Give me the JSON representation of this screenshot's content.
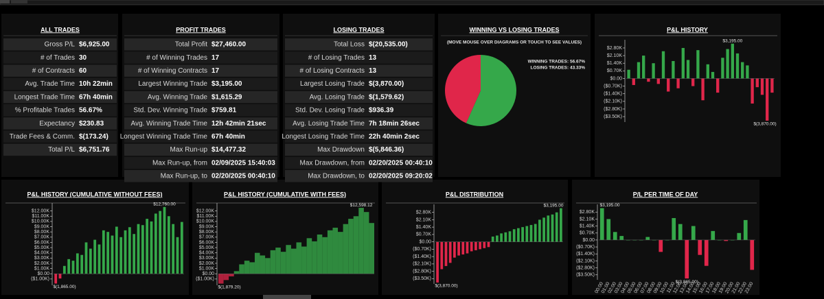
{
  "tables": [
    {
      "title": "ALL TRADES",
      "rows": [
        [
          "Gross P/L",
          "$6,925.00"
        ],
        [
          "# of Trades",
          "30"
        ],
        [
          "# of Contracts",
          "60"
        ],
        [
          "Avg. Trade Time",
          "10h 22min"
        ],
        [
          "Longest Trade Time",
          "67h 40min"
        ],
        [
          "% Profitable Trades",
          "56.67%"
        ],
        [
          "Expectancy",
          "$230.83"
        ],
        [
          "Trade Fees & Comm.",
          "$(173.24)"
        ],
        [
          "Total P/L",
          "$6,751.76"
        ]
      ]
    },
    {
      "title": "PROFIT TRADES",
      "rows": [
        [
          "Total Profit",
          "$27,460.00"
        ],
        [
          "# of Winning Trades",
          "17"
        ],
        [
          "# of Winning Contracts",
          "17"
        ],
        [
          "Largest Winning Trade",
          "$3,195.00"
        ],
        [
          "Avg. Winning Trade",
          "$1,615.29"
        ],
        [
          "Std. Dev. Winning Trade",
          "$759.81"
        ],
        [
          "Avg. Winning Trade Time",
          "12h 42min 21sec"
        ],
        [
          "Longest Winning Trade Time",
          "67h 40min"
        ],
        [
          "Max Run-up",
          "$14,477.32"
        ],
        [
          "Max Run-up, from",
          "02/09/2025 15:40:03"
        ],
        [
          "Max Run-up, to",
          "02/20/2025 00:40:10"
        ]
      ]
    },
    {
      "title": "LOSING TRADES",
      "rows": [
        [
          "Total Loss",
          "$(20,535.00)"
        ],
        [
          "# of Losing Trades",
          "13"
        ],
        [
          "# of Losing Contracts",
          "13"
        ],
        [
          "Largest Losing Trade",
          "$(3,870.00)"
        ],
        [
          "Avg. Losing Trade",
          "$(1,579.62)"
        ],
        [
          "Std. Dev. Losing Trade",
          "$936.39"
        ],
        [
          "Avg. Losing Trade Time",
          "7h 18min 26sec"
        ],
        [
          "Longest Losing Trade Time",
          "22h 40min 2sec"
        ],
        [
          "Max Drawdown",
          "$(5,846.36)"
        ],
        [
          "Max Drawdown, from",
          "02/20/2025 00:40:10"
        ],
        [
          "Max Drawdown, to",
          "02/20/2025 09:20:02"
        ]
      ]
    }
  ],
  "chart_data": [
    {
      "type": "pie",
      "title": "WINNING VS LOSING TRADES",
      "subtitle": "(MOVE MOUSE OVER DIAGRAMS OR TOUCH TO SEE VALUES)",
      "values": [
        56.67,
        43.33
      ],
      "value_labels": [
        "WINNING TRADES: 56.67%",
        "LOSING TRADES: 43.33%"
      ],
      "colors": [
        "#35a84a",
        "#e0264a"
      ]
    },
    {
      "type": "bar",
      "title": "P&L HISTORY",
      "positive_color": "#35a84a",
      "negative_color": "#e0264a",
      "values": [
        800,
        -600,
        1500,
        2100,
        -300,
        1400,
        -500,
        2500,
        -1200,
        1600,
        -900,
        2800,
        1700,
        -700,
        2600,
        -2000,
        1300,
        600,
        -1300,
        1900,
        2700,
        3195,
        2300,
        1500,
        1200,
        -2300,
        -800,
        -1500,
        -3870,
        -1300
      ],
      "ylim": [
        -4000,
        3300
      ],
      "yticks": [
        {
          "value": 2800,
          "label": "$2.80K"
        },
        {
          "value": 2100,
          "label": "$2.10K"
        },
        {
          "value": 1400,
          "label": "$1.40K"
        },
        {
          "value": 700,
          "label": "$0.70K"
        },
        {
          "value": 0,
          "label": "$0.00"
        },
        {
          "value": -700,
          "label": "($0.70K)"
        },
        {
          "value": -1400,
          "label": "($1.40K)"
        },
        {
          "value": -2100,
          "label": "($2.10K)"
        },
        {
          "value": -2800,
          "label": "($2.80K)"
        },
        {
          "value": -3500,
          "label": "($3.50K)"
        }
      ],
      "annotations": [
        {
          "label": "$3,195.00",
          "value": 3195
        },
        {
          "label": "$(3,870.00)",
          "value": -3870
        }
      ]
    },
    {
      "type": "bar",
      "title": "P&L HISTORY (CUMULATIVE WITHOUT FEES)",
      "positive_color": "#35a84a",
      "negative_color": "#e0264a",
      "values": [
        -1865,
        -900,
        1500,
        2800,
        2500,
        3900,
        3600,
        6000,
        4800,
        6500,
        5600,
        8300,
        8000,
        7300,
        9000,
        7000,
        8300,
        8900,
        7600,
        9500,
        9300,
        10500,
        10000,
        11500,
        12000,
        12760,
        11000,
        9500,
        7000,
        9900
      ],
      "ylim": [
        -2200,
        13000
      ],
      "yticks": [
        {
          "value": 12000,
          "label": "$12.00K"
        },
        {
          "value": 11000,
          "label": "$11.00K"
        },
        {
          "value": 10000,
          "label": "$10.00K"
        },
        {
          "value": 9000,
          "label": "$9.00K"
        },
        {
          "value": 8000,
          "label": "$8.00K"
        },
        {
          "value": 7000,
          "label": "$7.00K"
        },
        {
          "value": 6000,
          "label": "$6.00K"
        },
        {
          "value": 5000,
          "label": "$5.00K"
        },
        {
          "value": 4000,
          "label": "$4.00K"
        },
        {
          "value": 3000,
          "label": "$3.00K"
        },
        {
          "value": 2000,
          "label": "$2.00K"
        },
        {
          "value": 1000,
          "label": "$1.00K"
        },
        {
          "value": 0,
          "label": "$0.00"
        },
        {
          "value": -1000,
          "label": "($1.00K)"
        }
      ],
      "annotations": [
        {
          "label": "$12,760.00",
          "value": 12760
        },
        {
          "label": "$(1,865.00)",
          "value": -1865
        }
      ]
    },
    {
      "type": "area",
      "title": "P&L HISTORY (CUMULATIVE WITH FEES)",
      "positive_color": "#2f8a3e",
      "negative_color": "#b0203c",
      "values": [
        -1879.2,
        -1200,
        -500,
        500,
        1800,
        2500,
        2200,
        4000,
        3500,
        3000,
        4500,
        5000,
        4200,
        5500,
        4800,
        6000,
        5200,
        6800,
        6200,
        7500,
        7000,
        8300,
        8800,
        8000,
        9500,
        10500,
        11000,
        12598.12,
        11800,
        9700
      ],
      "ylim": [
        -2200,
        13000
      ],
      "yticks": [
        {
          "value": 12000,
          "label": "$12.00K"
        },
        {
          "value": 11000,
          "label": "$11.00K"
        },
        {
          "value": 10000,
          "label": "$10.00K"
        },
        {
          "value": 9000,
          "label": "$9.00K"
        },
        {
          "value": 8000,
          "label": "$8.00K"
        },
        {
          "value": 7000,
          "label": "$7.00K"
        },
        {
          "value": 6000,
          "label": "$6.00K"
        },
        {
          "value": 5000,
          "label": "$5.00K"
        },
        {
          "value": 4000,
          "label": "$4.00K"
        },
        {
          "value": 3000,
          "label": "$3.00K"
        },
        {
          "value": 2000,
          "label": "$2.00K"
        },
        {
          "value": 1000,
          "label": "$1.00K"
        },
        {
          "value": 0,
          "label": "$0.00"
        },
        {
          "value": -1000,
          "label": "($1.00K)"
        }
      ],
      "annotations": [
        {
          "label": "$12,598.12",
          "value": 12598.12
        },
        {
          "label": "$(1,879.20)",
          "value": -1879.2
        }
      ]
    },
    {
      "type": "bar",
      "title": "P&L DISTRIBUTION",
      "positive_color": "#35a84a",
      "negative_color": "#e0264a",
      "values": [
        -3870,
        -2600,
        -2300,
        -2000,
        -1500,
        -1300,
        -1200,
        -1100,
        -900,
        -800,
        -700,
        -600,
        -500,
        500,
        600,
        800,
        900,
        1000,
        1200,
        1300,
        1400,
        1500,
        1600,
        1700,
        2100,
        2300,
        2500,
        2600,
        2800,
        3195
      ],
      "ylim": [
        -4000,
        3300
      ],
      "yticks": [
        {
          "value": 2800,
          "label": "$2.80K"
        },
        {
          "value": 2100,
          "label": "$2.10K"
        },
        {
          "value": 1400,
          "label": "$1.40K"
        },
        {
          "value": 700,
          "label": "$0.70K"
        },
        {
          "value": 0,
          "label": "$0.00"
        },
        {
          "value": -700,
          "label": "($0.70K)"
        },
        {
          "value": -1400,
          "label": "($1.40K)"
        },
        {
          "value": -2100,
          "label": "($2.10K)"
        },
        {
          "value": -2800,
          "label": "($2.80K)"
        },
        {
          "value": -3500,
          "label": "($3.50K)"
        }
      ],
      "annotations": [
        {
          "label": "$3,195.00",
          "value": 3195
        },
        {
          "label": "$(3,870.00)",
          "value": -3870
        }
      ]
    },
    {
      "type": "bar",
      "title": "P/L PER TIME OF DAY",
      "positive_color": "#35a84a",
      "negative_color": "#e0264a",
      "categories": [
        "00:00",
        "01:00",
        "02:00",
        "03:00",
        "04:00",
        "05:00",
        "06:00",
        "07:00",
        "08:00",
        "09:00",
        "10:00",
        "11:00",
        "12:00",
        "13:00",
        "14:00",
        "15:00",
        "16:00",
        "17:00",
        "18:00",
        "19:00",
        "20:00",
        "21:00",
        "22:00",
        "23:00"
      ],
      "values": [
        3195,
        2100,
        800,
        400,
        0,
        0,
        0,
        300,
        0,
        -1200,
        0,
        2200,
        1600,
        -3865,
        1400,
        -1500,
        -2600,
        900,
        0,
        -100,
        0,
        700,
        2000,
        -3000
      ],
      "ylim": [
        -4000,
        3300
      ],
      "yticks": [
        {
          "value": 2800,
          "label": "$2.80K"
        },
        {
          "value": 2100,
          "label": "$2.10K"
        },
        {
          "value": 1400,
          "label": "$1.40K"
        },
        {
          "value": 700,
          "label": "$0.70K"
        },
        {
          "value": 0,
          "label": "$0.00"
        },
        {
          "value": -700,
          "label": "($0.70K)"
        },
        {
          "value": -1400,
          "label": "($1.40K)"
        },
        {
          "value": -2100,
          "label": "($2.10K)"
        },
        {
          "value": -2800,
          "label": "($2.80K)"
        },
        {
          "value": -3500,
          "label": "($3.50K)"
        }
      ],
      "annotations": [
        {
          "label": "$3,195.00",
          "value": 3195
        },
        {
          "label": "$(3,865.00)",
          "value": -3865
        }
      ]
    }
  ]
}
